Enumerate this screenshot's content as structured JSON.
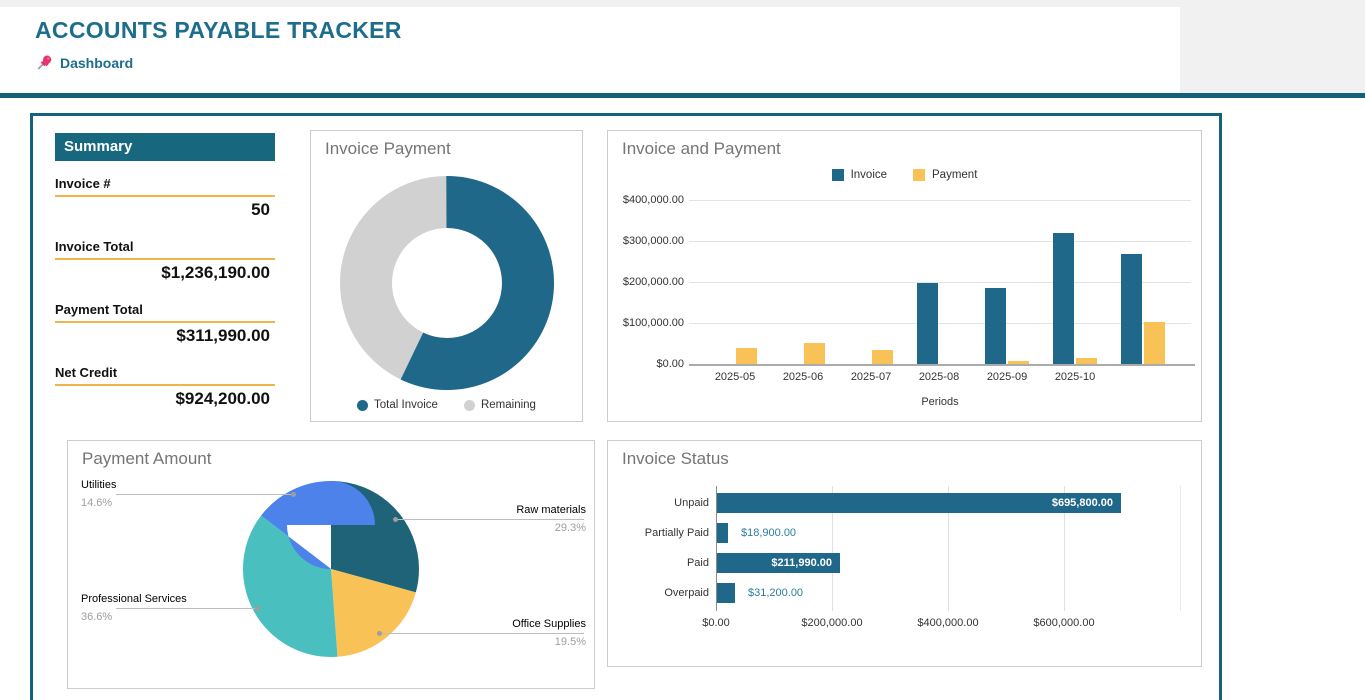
{
  "header": {
    "title": "ACCOUNTS PAYABLE TRACKER",
    "nav_label": "Dashboard",
    "pin_icon": "pushpin-icon"
  },
  "colors": {
    "accent_teal": "#20688A",
    "header_teal": "#1D6D8C",
    "divider_teal": "#12607A",
    "summary_bar": "#17677F",
    "gold_rule": "#F0B548",
    "payment_yellow": "#F9C257",
    "remaining_gray": "#D1D1D1",
    "pie_dark_teal": "#1F6378",
    "pie_turquoise": "#49BFBF",
    "pie_blue": "#4C82EA",
    "value_label_teal": "#2E7D9E"
  },
  "summary": {
    "title": "Summary",
    "fields": [
      {
        "label": "Invoice #",
        "value": "50"
      },
      {
        "label": "Invoice Total",
        "value": "$1,236,190.00"
      },
      {
        "label": "Payment Total",
        "value": "$311,990.00"
      },
      {
        "label": "Net Credit",
        "value": "$924,200.00"
      }
    ]
  },
  "chart_data": [
    {
      "id": "invoice_payment",
      "type": "pie",
      "donut": true,
      "title": "Invoice Payment",
      "labels": [
        "Total Invoice",
        "Remaining"
      ],
      "values_percent": [
        57.2,
        42.8
      ],
      "colors": [
        "#20688A",
        "#D1D1D1"
      ],
      "legend_position": "bottom"
    },
    {
      "id": "invoice_and_payment",
      "type": "bar",
      "title": "Invoice and Payment",
      "categories": [
        "2025-05",
        "2025-06",
        "2025-07",
        "2025-08",
        "2025-09",
        "2025-10",
        ""
      ],
      "series": [
        {
          "name": "Invoice",
          "color": "#20688A",
          "values": [
            0,
            0,
            0,
            197000,
            185000,
            320000,
            268000
          ]
        },
        {
          "name": "Payment",
          "color": "#F9C257",
          "values": [
            40000,
            52000,
            33000,
            0,
            8000,
            15000,
            103000
          ]
        }
      ],
      "xlabel": "Periods",
      "ytick_labels": [
        "$400,000.00",
        "$300,000.00",
        "$200,000.00",
        "$100,000.00",
        "$0.00"
      ],
      "ylim": [
        0,
        400000
      ],
      "grid": true,
      "legend_position": "top"
    },
    {
      "id": "payment_amount",
      "type": "pie",
      "title": "Payment Amount",
      "labels": [
        "Raw materials",
        "Office Supplies",
        "Professional Services",
        "Utilities"
      ],
      "values_percent": [
        29.3,
        19.5,
        36.6,
        14.6
      ],
      "pct_labels": [
        "29.3%",
        "19.5%",
        "36.6%",
        "14.6%"
      ],
      "colors": [
        "#1F6378",
        "#F9C257",
        "#49BFBF",
        "#4C82EA"
      ],
      "legend_position": "callouts"
    },
    {
      "id": "invoice_status",
      "type": "bar",
      "orientation": "horizontal",
      "title": "Invoice Status",
      "categories": [
        "Unpaid",
        "Partially Paid",
        "Paid",
        "Overpaid"
      ],
      "values": [
        695800,
        18900,
        211990,
        31200
      ],
      "value_labels": [
        "$695,800.00",
        "$18,900.00",
        "$211,990.00",
        "$31,200.00"
      ],
      "xtick_labels": [
        "$0.00",
        "$200,000.00",
        "$400,000.00",
        "$600,000.00"
      ],
      "xlim": [
        0,
        840000
      ],
      "bar_color": "#20688A",
      "grid": true
    }
  ]
}
